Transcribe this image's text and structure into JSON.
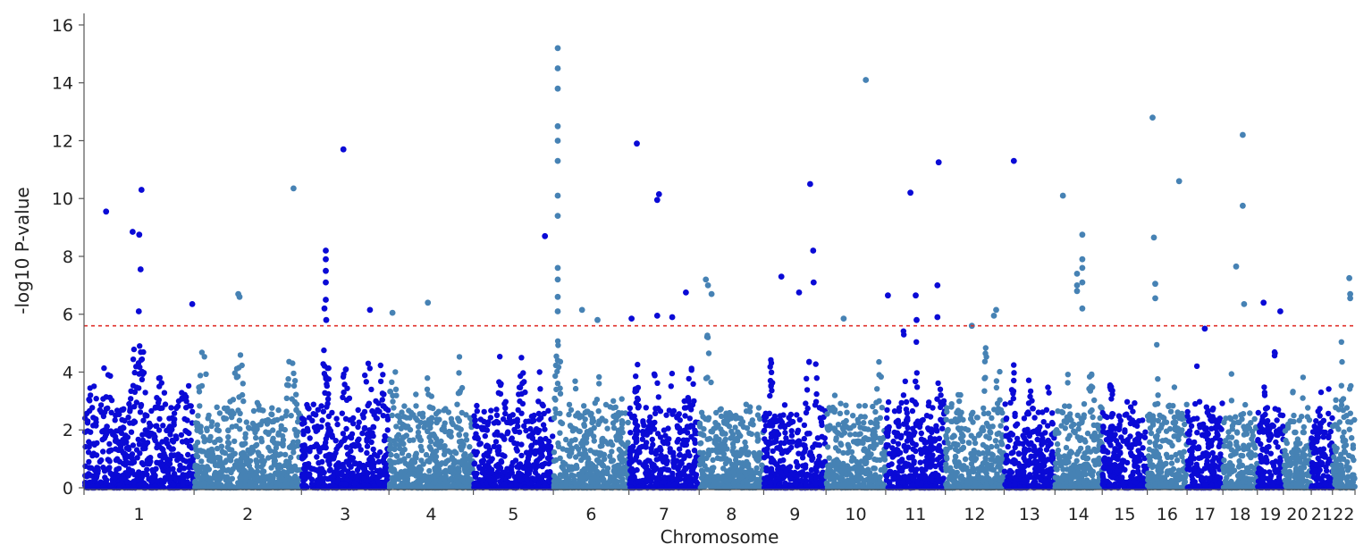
{
  "chart_data": {
    "type": "scatter",
    "subtype": "manhattan",
    "title": "",
    "xlabel": "Chromosome",
    "ylabel": "-log10 P-value",
    "ylim": [
      0,
      16.4
    ],
    "yticks": [
      0,
      2,
      4,
      6,
      8,
      10,
      12,
      14,
      16
    ],
    "grid": false,
    "legend": "none",
    "colors": {
      "dark": "#0a0ad6",
      "light": "#4682b4",
      "threshold": "#e0302a",
      "axis": "#555555"
    },
    "threshold": {
      "value": 5.6,
      "style": "dashed"
    },
    "chromosomes": [
      {
        "label": "1",
        "length": 249,
        "color": "dark"
      },
      {
        "label": "2",
        "length": 243,
        "color": "light"
      },
      {
        "label": "3",
        "length": 198,
        "color": "dark"
      },
      {
        "label": "4",
        "length": 191,
        "color": "light"
      },
      {
        "label": "5",
        "length": 181,
        "color": "dark"
      },
      {
        "label": "6",
        "length": 171,
        "color": "light"
      },
      {
        "label": "7",
        "length": 159,
        "color": "dark"
      },
      {
        "label": "8",
        "length": 146,
        "color": "light"
      },
      {
        "label": "9",
        "length": 141,
        "color": "dark"
      },
      {
        "label": "10",
        "length": 135,
        "color": "light"
      },
      {
        "label": "11",
        "length": 135,
        "color": "dark"
      },
      {
        "label": "12",
        "length": 133,
        "color": "light"
      },
      {
        "label": "13",
        "length": 115,
        "color": "dark"
      },
      {
        "label": "14",
        "length": 107,
        "color": "light"
      },
      {
        "label": "15",
        "length": 102,
        "color": "dark"
      },
      {
        "label": "16",
        "length": 90,
        "color": "light"
      },
      {
        "label": "17",
        "length": 81,
        "color": "dark"
      },
      {
        "label": "18",
        "length": 78,
        "color": "light"
      },
      {
        "label": "19",
        "length": 59,
        "color": "dark"
      },
      {
        "label": "20",
        "length": 63,
        "color": "light"
      },
      {
        "label": "21",
        "length": 48,
        "color": "dark"
      },
      {
        "label": "22",
        "length": 51,
        "color": "light"
      }
    ],
    "significant_points": [
      {
        "chr": "1",
        "pos": 50,
        "y": 9.55
      },
      {
        "chr": "1",
        "pos": 110,
        "y": 8.85
      },
      {
        "chr": "1",
        "pos": 125,
        "y": 8.75
      },
      {
        "chr": "1",
        "pos": 130,
        "y": 10.3
      },
      {
        "chr": "1",
        "pos": 128,
        "y": 7.55
      },
      {
        "chr": "1",
        "pos": 124,
        "y": 6.1
      },
      {
        "chr": "1",
        "pos": 245,
        "y": 6.35
      },
      {
        "chr": "2",
        "pos": 100,
        "y": 6.7
      },
      {
        "chr": "2",
        "pos": 103,
        "y": 6.6
      },
      {
        "chr": "2",
        "pos": 225,
        "y": 10.35
      },
      {
        "chr": "3",
        "pos": 95,
        "y": 11.7
      },
      {
        "chr": "3",
        "pos": 155,
        "y": 6.15
      },
      {
        "chr": "3",
        "pos": 55,
        "y": 8.2
      },
      {
        "chr": "3",
        "pos": 55,
        "y": 7.9
      },
      {
        "chr": "3",
        "pos": 55,
        "y": 7.5
      },
      {
        "chr": "3",
        "pos": 55,
        "y": 7.1
      },
      {
        "chr": "3",
        "pos": 55,
        "y": 6.5
      },
      {
        "chr": "3",
        "pos": 52,
        "y": 6.2
      },
      {
        "chr": "3",
        "pos": 56,
        "y": 5.8
      },
      {
        "chr": "4",
        "pos": 8,
        "y": 6.05
      },
      {
        "chr": "4",
        "pos": 88,
        "y": 6.4
      },
      {
        "chr": "5",
        "pos": 162,
        "y": 8.7
      },
      {
        "chr": "6",
        "pos": 10,
        "y": 15.2
      },
      {
        "chr": "6",
        "pos": 10,
        "y": 14.5
      },
      {
        "chr": "6",
        "pos": 10,
        "y": 13.8
      },
      {
        "chr": "6",
        "pos": 10,
        "y": 12.5
      },
      {
        "chr": "6",
        "pos": 10,
        "y": 12.0
      },
      {
        "chr": "6",
        "pos": 10,
        "y": 11.3
      },
      {
        "chr": "6",
        "pos": 10,
        "y": 10.1
      },
      {
        "chr": "6",
        "pos": 10,
        "y": 9.4
      },
      {
        "chr": "6",
        "pos": 10,
        "y": 7.6
      },
      {
        "chr": "6",
        "pos": 10,
        "y": 7.2
      },
      {
        "chr": "6",
        "pos": 10,
        "y": 6.6
      },
      {
        "chr": "6",
        "pos": 10,
        "y": 6.1
      },
      {
        "chr": "6",
        "pos": 65,
        "y": 6.15
      },
      {
        "chr": "6",
        "pos": 100,
        "y": 5.8
      },
      {
        "chr": "7",
        "pos": 18,
        "y": 11.9
      },
      {
        "chr": "7",
        "pos": 68,
        "y": 10.15
      },
      {
        "chr": "7",
        "pos": 64,
        "y": 9.95
      },
      {
        "chr": "7",
        "pos": 64,
        "y": 5.95
      },
      {
        "chr": "7",
        "pos": 98,
        "y": 5.9
      },
      {
        "chr": "7",
        "pos": 129,
        "y": 6.75
      },
      {
        "chr": "7",
        "pos": 6,
        "y": 5.85
      },
      {
        "chr": "8",
        "pos": 15,
        "y": 7.2
      },
      {
        "chr": "8",
        "pos": 20,
        "y": 7.0
      },
      {
        "chr": "8",
        "pos": 28,
        "y": 6.7
      },
      {
        "chr": "9",
        "pos": 40,
        "y": 7.3
      },
      {
        "chr": "9",
        "pos": 80,
        "y": 6.75
      },
      {
        "chr": "9",
        "pos": 105,
        "y": 10.5
      },
      {
        "chr": "9",
        "pos": 112,
        "y": 8.2
      },
      {
        "chr": "9",
        "pos": 113,
        "y": 7.1
      },
      {
        "chr": "10",
        "pos": 40,
        "y": 5.85
      },
      {
        "chr": "10",
        "pos": 90,
        "y": 14.1
      },
      {
        "chr": "11",
        "pos": 5,
        "y": 6.65
      },
      {
        "chr": "11",
        "pos": 56,
        "y": 10.2
      },
      {
        "chr": "11",
        "pos": 68,
        "y": 6.65
      },
      {
        "chr": "11",
        "pos": 120,
        "y": 11.25
      },
      {
        "chr": "11",
        "pos": 117,
        "y": 7.0
      },
      {
        "chr": "11",
        "pos": 117,
        "y": 5.9
      },
      {
        "chr": "11",
        "pos": 70,
        "y": 5.8
      },
      {
        "chr": "12",
        "pos": 115,
        "y": 6.15
      },
      {
        "chr": "12",
        "pos": 110,
        "y": 5.95
      },
      {
        "chr": "12",
        "pos": 60,
        "y": 5.6
      },
      {
        "chr": "13",
        "pos": 22,
        "y": 11.3
      },
      {
        "chr": "14",
        "pos": 18,
        "y": 10.1
      },
      {
        "chr": "14",
        "pos": 62,
        "y": 8.75
      },
      {
        "chr": "14",
        "pos": 62,
        "y": 7.9
      },
      {
        "chr": "14",
        "pos": 62,
        "y": 7.6
      },
      {
        "chr": "14",
        "pos": 62,
        "y": 7.1
      },
      {
        "chr": "14",
        "pos": 62,
        "y": 6.2
      },
      {
        "chr": "14",
        "pos": 50,
        "y": 7.4
      },
      {
        "chr": "14",
        "pos": 50,
        "y": 7.0
      },
      {
        "chr": "14",
        "pos": 50,
        "y": 6.8
      },
      {
        "chr": "16",
        "pos": 12,
        "y": 12.8
      },
      {
        "chr": "16",
        "pos": 15,
        "y": 8.65
      },
      {
        "chr": "16",
        "pos": 18,
        "y": 7.05
      },
      {
        "chr": "16",
        "pos": 18,
        "y": 6.55
      },
      {
        "chr": "16",
        "pos": 72,
        "y": 10.6
      },
      {
        "chr": "17",
        "pos": 40,
        "y": 5.5
      },
      {
        "chr": "18",
        "pos": 45,
        "y": 12.2
      },
      {
        "chr": "18",
        "pos": 45,
        "y": 9.75
      },
      {
        "chr": "18",
        "pos": 30,
        "y": 7.65
      },
      {
        "chr": "18",
        "pos": 48,
        "y": 6.35
      },
      {
        "chr": "19",
        "pos": 14,
        "y": 6.4
      },
      {
        "chr": "19",
        "pos": 52,
        "y": 6.1
      },
      {
        "chr": "22",
        "pos": 38,
        "y": 7.25
      },
      {
        "chr": "22",
        "pos": 40,
        "y": 6.7
      },
      {
        "chr": "22",
        "pos": 40,
        "y": 6.55
      }
    ],
    "peak_profile": {
      "1": [
        [
          20,
          4.0
        ],
        [
          50,
          5.3
        ],
        [
          115,
          5.1
        ],
        [
          128,
          5.5
        ],
        [
          175,
          4.5
        ],
        [
          230,
          4.4
        ]
      ],
      "2": [
        [
          20,
          4.8
        ],
        [
          100,
          5.5
        ],
        [
          150,
          4.2
        ],
        [
          220,
          5.0
        ]
      ],
      "3": [
        [
          55,
          5.2
        ],
        [
          100,
          4.6
        ],
        [
          150,
          5.0
        ],
        [
          180,
          4.5
        ]
      ],
      "4": [
        [
          10,
          5.0
        ],
        [
          60,
          3.4
        ],
        [
          90,
          4.4
        ],
        [
          160,
          5.3
        ]
      ],
      "5": [
        [
          60,
          4.8
        ],
        [
          110,
          5.1
        ],
        [
          150,
          4.3
        ]
      ],
      "6": [
        [
          10,
          5.6
        ],
        [
          50,
          4.0
        ],
        [
          100,
          4.4
        ],
        [
          150,
          3.9
        ]
      ],
      "7": [
        [
          20,
          4.6
        ],
        [
          60,
          4.8
        ],
        [
          100,
          4.4
        ],
        [
          140,
          4.6
        ]
      ],
      "8": [
        [
          20,
          5.5
        ],
        [
          70,
          4.0
        ],
        [
          120,
          3.8
        ]
      ],
      "9": [
        [
          15,
          4.9
        ],
        [
          100,
          5.2
        ],
        [
          120,
          4.6
        ]
      ],
      "10": [
        [
          20,
          4.0
        ],
        [
          80,
          4.6
        ],
        [
          120,
          5.2
        ]
      ],
      "11": [
        [
          40,
          5.6
        ],
        [
          70,
          5.5
        ],
        [
          120,
          4.6
        ]
      ],
      "12": [
        [
          30,
          4.0
        ],
        [
          90,
          5.2
        ],
        [
          120,
          5.0
        ]
      ],
      "13": [
        [
          20,
          4.7
        ],
        [
          60,
          5.0
        ],
        [
          100,
          3.7
        ]
      ],
      "14": [
        [
          30,
          4.2
        ],
        [
          80,
          5.2
        ]
      ],
      "15": [
        [
          20,
          5.1
        ],
        [
          60,
          4.1
        ]
      ],
      "16": [
        [
          20,
          5.3
        ],
        [
          60,
          4.0
        ]
      ],
      "17": [
        [
          20,
          5.0
        ],
        [
          50,
          5.1
        ]
      ],
      "18": [
        [
          20,
          4.5
        ],
        [
          60,
          3.9
        ]
      ],
      "19": [
        [
          15,
          4.2
        ],
        [
          40,
          5.0
        ]
      ],
      "20": [
        [
          20,
          4.0
        ],
        [
          45,
          4.9
        ]
      ],
      "21": [
        [
          20,
          4.4
        ],
        [
          40,
          3.5
        ]
      ],
      "22": [
        [
          20,
          5.6
        ],
        [
          40,
          4.5
        ]
      ]
    }
  }
}
